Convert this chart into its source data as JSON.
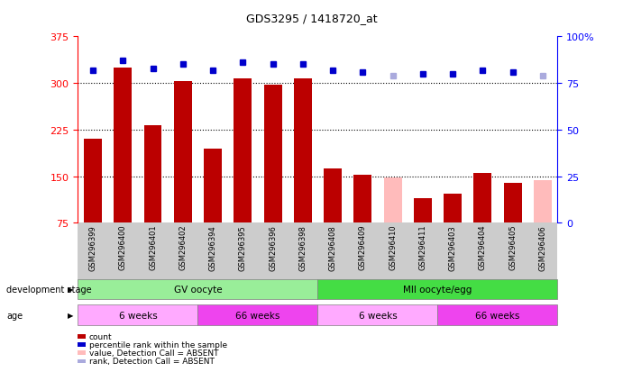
{
  "title": "GDS3295 / 1418720_at",
  "samples": [
    "GSM296399",
    "GSM296400",
    "GSM296401",
    "GSM296402",
    "GSM296394",
    "GSM296395",
    "GSM296396",
    "GSM296398",
    "GSM296408",
    "GSM296409",
    "GSM296410",
    "GSM296411",
    "GSM296403",
    "GSM296404",
    "GSM296405",
    "GSM296406"
  ],
  "counts": [
    210,
    325,
    232,
    303,
    195,
    308,
    297,
    307,
    163,
    152,
    148,
    115,
    122,
    155,
    140,
    143
  ],
  "absent_counts": [
    false,
    false,
    false,
    false,
    false,
    false,
    false,
    false,
    false,
    false,
    true,
    false,
    false,
    false,
    false,
    true
  ],
  "percentile_ranks": [
    82,
    87,
    83,
    85,
    82,
    86,
    85,
    85,
    82,
    81,
    79,
    80,
    80,
    82,
    81,
    79
  ],
  "absent_ranks": [
    false,
    false,
    false,
    false,
    false,
    false,
    false,
    false,
    false,
    false,
    true,
    false,
    false,
    false,
    false,
    true
  ],
  "ylim_left": [
    75,
    375
  ],
  "ylim_right": [
    0,
    100
  ],
  "yticks_left": [
    75,
    150,
    225,
    300,
    375
  ],
  "yticks_right": [
    0,
    25,
    50,
    75,
    100
  ],
  "bar_color_present": "#bb0000",
  "bar_color_absent": "#ffbbbb",
  "rank_color_present": "#0000cc",
  "rank_color_absent": "#aaaadd",
  "groups": [
    {
      "label": "GV oocyte",
      "start": 0,
      "end": 8,
      "color": "#99ee99"
    },
    {
      "label": "MII oocyte/egg",
      "start": 8,
      "end": 16,
      "color": "#44dd44"
    }
  ],
  "age_groups": [
    {
      "label": "6 weeks",
      "start": 0,
      "end": 4,
      "color": "#ffaaff"
    },
    {
      "label": "66 weeks",
      "start": 4,
      "end": 8,
      "color": "#ee44ee"
    },
    {
      "label": "6 weeks",
      "start": 8,
      "end": 12,
      "color": "#ffaaff"
    },
    {
      "label": "66 weeks",
      "start": 12,
      "end": 16,
      "color": "#ee44ee"
    }
  ],
  "legend_items": [
    {
      "label": "count",
      "color": "#bb0000"
    },
    {
      "label": "percentile rank within the sample",
      "color": "#0000cc"
    },
    {
      "label": "value, Detection Call = ABSENT",
      "color": "#ffbbbb"
    },
    {
      "label": "rank, Detection Call = ABSENT",
      "color": "#aaaadd"
    }
  ],
  "dev_stage_label": "development stage",
  "age_label": "age",
  "gridline_vals": [
    150,
    225,
    300
  ]
}
